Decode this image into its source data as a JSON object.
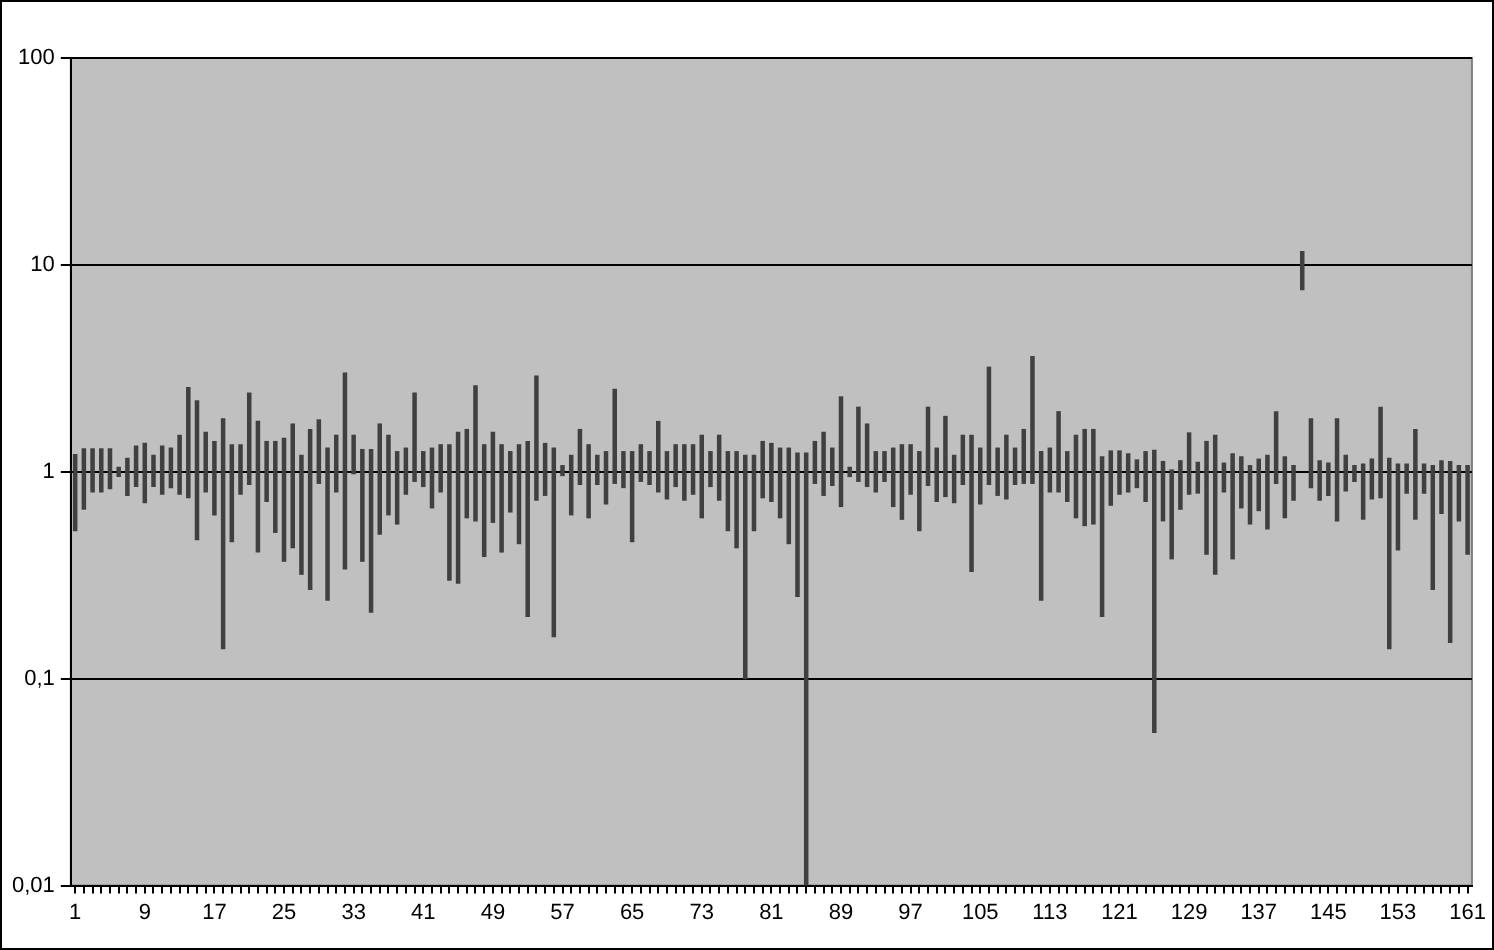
{
  "chart_data": {
    "type": "bar",
    "log": "y",
    "grid": "y",
    "legend": false,
    "color": "#404040",
    "categories": [
      "1",
      null,
      null,
      null,
      null,
      null,
      null,
      null,
      "9",
      null,
      null,
      null,
      null,
      null,
      null,
      null,
      "17",
      null,
      null,
      null,
      null,
      null,
      null,
      null,
      "25",
      null,
      null,
      null,
      null,
      null,
      null,
      null,
      "33",
      null,
      null,
      null,
      null,
      null,
      null,
      null,
      "41",
      null,
      null,
      null,
      null,
      null,
      null,
      null,
      "49",
      null,
      null,
      null,
      null,
      null,
      null,
      null,
      "57",
      null,
      null,
      null,
      null,
      null,
      null,
      null,
      "65",
      null,
      null,
      null,
      null,
      null,
      null,
      null,
      "73",
      null,
      null,
      null,
      null,
      null,
      null,
      null,
      "81",
      null,
      null,
      null,
      null,
      null,
      null,
      null,
      "89",
      null,
      null,
      null,
      null,
      null,
      null,
      null,
      "97",
      null,
      null,
      null,
      null,
      null,
      null,
      null,
      "105",
      null,
      null,
      null,
      null,
      null,
      null,
      null,
      "113",
      null,
      null,
      null,
      null,
      null,
      null,
      null,
      "121",
      null,
      null,
      null,
      null,
      null,
      null,
      null,
      "129",
      null,
      null,
      null,
      null,
      null,
      null,
      null,
      "137",
      null,
      null,
      null,
      null,
      null,
      null,
      null,
      "145",
      null,
      null,
      null,
      null,
      null,
      null,
      null,
      "153",
      null,
      null,
      null,
      null,
      null,
      null,
      null,
      "161"
    ],
    "base": [
      0.52,
      0.66,
      0.8,
      0.8,
      0.83,
      0.95,
      0.77,
      0.85,
      0.71,
      0.85,
      0.78,
      0.84,
      0.78,
      0.75,
      0.47,
      0.8,
      0.62,
      0.14,
      0.46,
      0.78,
      0.87,
      0.41,
      0.72,
      0.51,
      0.37,
      0.43,
      0.32,
      0.27,
      0.88,
      0.24,
      0.8,
      0.34,
      0.98,
      0.37,
      0.21,
      0.5,
      0.62,
      0.56,
      0.78,
      0.9,
      0.85,
      0.67,
      0.8,
      0.3,
      0.29,
      0.6,
      0.58,
      0.39,
      0.57,
      0.41,
      0.64,
      0.45,
      0.2,
      0.73,
      0.77,
      0.16,
      0.96,
      0.62,
      0.87,
      0.6,
      0.87,
      0.7,
      0.88,
      0.84,
      0.46,
      0.9,
      0.87,
      0.8,
      0.74,
      0.85,
      0.73,
      0.78,
      0.6,
      0.85,
      0.73,
      0.52,
      0.43,
      0.1,
      0.52,
      0.75,
      0.72,
      0.6,
      0.45,
      0.25,
      0.01,
      0.88,
      0.77,
      0.86,
      0.68,
      0.95,
      0.9,
      0.85,
      0.8,
      0.9,
      0.68,
      0.59,
      0.78,
      0.52,
      0.86,
      0.72,
      0.76,
      0.71,
      0.87,
      0.33,
      0.7,
      0.87,
      0.77,
      0.74,
      0.87,
      0.88,
      0.88,
      0.24,
      0.8,
      0.8,
      0.72,
      0.6,
      0.55,
      0.56,
      0.2,
      0.69,
      0.78,
      0.8,
      0.84,
      0.72,
      0.055,
      0.58,
      0.38,
      0.66,
      0.78,
      0.79,
      0.4,
      0.32,
      0.8,
      0.38,
      0.67,
      0.56,
      0.65,
      0.53,
      0.88,
      0.6,
      0.73,
      7.6,
      0.84,
      0.73,
      0.77,
      0.58,
      0.81,
      0.9,
      0.59,
      0.74,
      0.75,
      0.14,
      0.42,
      0.79,
      0.59,
      0.79,
      0.27,
      0.63,
      0.15,
      0.58,
      0.4
    ],
    "values": [
      0.69,
      0.63,
      0.49,
      0.49,
      0.46,
      0.1,
      0.39,
      0.48,
      0.66,
      0.35,
      0.55,
      0.46,
      0.72,
      1.8,
      1.73,
      0.75,
      0.78,
      1.66,
      0.89,
      0.57,
      1.53,
      1.34,
      0.68,
      0.89,
      1.08,
      1.27,
      0.88,
      1.33,
      0.9,
      1.06,
      0.7,
      2.66,
      0.52,
      0.91,
      1.07,
      1.2,
      0.88,
      0.69,
      0.52,
      1.5,
      0.4,
      0.63,
      0.55,
      1.05,
      1.26,
      1.0,
      2.02,
      0.96,
      0.98,
      0.94,
      0.61,
      0.9,
      1.2,
      2.17,
      0.6,
      1.14,
      0.11,
      0.58,
      0.73,
      0.75,
      0.33,
      0.55,
      1.62,
      0.41,
      0.79,
      0.45,
      0.38,
      0.95,
      0.51,
      0.5,
      0.62,
      0.57,
      0.9,
      0.4,
      0.77,
      0.73,
      0.82,
      1.1,
      0.68,
      0.65,
      0.65,
      0.7,
      0.85,
      0.98,
      1.22,
      0.52,
      0.78,
      0.44,
      1.62,
      0.1,
      1.15,
      0.85,
      0.45,
      0.35,
      0.62,
      0.76,
      0.57,
      0.73,
      1.19,
      0.58,
      1.09,
      0.49,
      0.63,
      1.17,
      0.6,
      2.33,
      0.53,
      0.76,
      0.43,
      0.72,
      2.72,
      1.01,
      0.5,
      1.15,
      0.53,
      0.9,
      1.05,
      1.04,
      0.98,
      0.57,
      0.48,
      0.42,
      0.3,
      0.53,
      1.215,
      0.54,
      0.64,
      0.47,
      0.76,
      0.32,
      1.0,
      1.18,
      0.3,
      0.84,
      0.51,
      0.51,
      0.5,
      0.67,
      1.07,
      0.58,
      0.34,
      4.0,
      0.96,
      0.4,
      0.33,
      1.22,
      0.39,
      0.17,
      0.5,
      0.41,
      1.3,
      1.02,
      0.67,
      0.3,
      1.01,
      0.3,
      0.8,
      0.5,
      0.97,
      0.49,
      0.67
    ],
    "ylim": [
      0.01,
      100
    ],
    "yticks": [
      {
        "value": 0.01,
        "label": "0,01"
      },
      {
        "value": 0.1,
        "label": "0,1"
      },
      1,
      10,
      100
    ]
  }
}
